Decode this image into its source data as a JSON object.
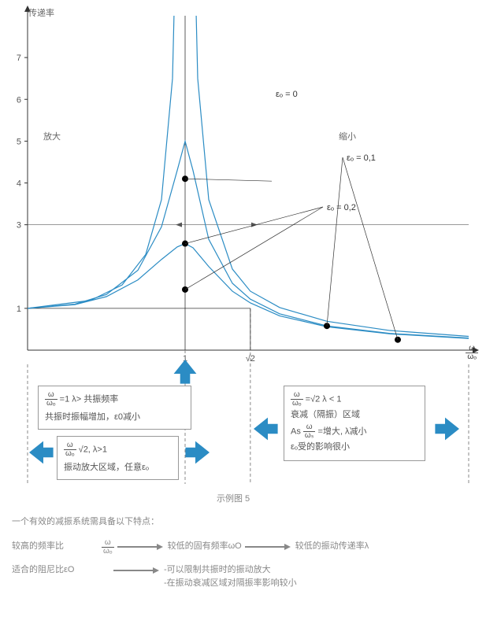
{
  "chart": {
    "type": "line",
    "title_y": "传递率",
    "xlim": [
      0,
      2.8
    ],
    "ylim": [
      0,
      8
    ],
    "yticks": [
      1,
      3,
      4,
      5,
      6,
      7
    ],
    "xticks_special": [
      "1",
      "√2"
    ],
    "background_color": "#ffffff",
    "grid_color": "#333333",
    "axis_color": "#333333",
    "curve_color": "#2b8cc4",
    "curve_width": 1.2,
    "marker_color": "#000000",
    "marker_radius": 4,
    "series": {
      "eps_0": {
        "label": "εₒ = 0",
        "points_x": [
          0,
          0.4,
          0.6,
          0.75,
          0.85,
          0.92,
          0.96,
          0.98,
          0.99
        ],
        "points_y": [
          1,
          1.19,
          1.56,
          2.29,
          3.6,
          6.5,
          12.8,
          25.3,
          50.3
        ],
        "points_x2": [
          1.01,
          1.02,
          1.04,
          1.08,
          1.15,
          1.3,
          1.4142,
          1.6,
          1.9,
          2.3,
          2.8
        ],
        "points_y2": [
          50.3,
          25.3,
          12.8,
          6.5,
          3.6,
          1.94,
          1.41,
          1.02,
          0.69,
          0.47,
          0.33
        ]
      },
      "eps_01": {
        "label": "εₒ = 0,1",
        "points_x": [
          0,
          0.3,
          0.5,
          0.7,
          0.85,
          0.95,
          1.0,
          1.05,
          1.15,
          1.3,
          1.4142,
          1.6,
          1.9,
          2.3,
          2.8
        ],
        "points_y": [
          1,
          1.1,
          1.33,
          1.91,
          2.95,
          4.3,
          5.0,
          4.3,
          2.65,
          1.6,
          1.22,
          0.87,
          0.58,
          0.4,
          0.29
        ]
      },
      "eps_02": {
        "label": "εₒ = 0,2",
        "points_x": [
          0,
          0.3,
          0.5,
          0.7,
          0.85,
          0.95,
          1.0,
          1.05,
          1.15,
          1.3,
          1.4142,
          1.6,
          1.9,
          2.3,
          2.8
        ],
        "points_y": [
          1,
          1.09,
          1.28,
          1.68,
          2.17,
          2.47,
          2.55,
          2.45,
          2.0,
          1.41,
          1.13,
          0.82,
          0.56,
          0.39,
          0.28
        ]
      }
    },
    "markers": [
      {
        "x": 1.0,
        "y": 4.1,
        "leader_to_x": 1.55,
        "label_key": "eps_0"
      },
      {
        "x": 1.0,
        "y": 2.55,
        "leader_to_x": 2.0,
        "leader_to_y": 2.9,
        "label_key": "eps_02"
      },
      {
        "x": 1.0,
        "y": 1.45
      },
      {
        "x": 1.9,
        "y": 0.58,
        "leader_to_x": 2.35,
        "leader_to_y": 2.9,
        "label_key": "eps_01"
      },
      {
        "x": 2.35,
        "y": 0.25
      }
    ],
    "region_labels": {
      "amplify": "放大",
      "reduce": "缩小"
    },
    "arrow_color": "#2b8cc4",
    "x_axis_label_frac": {
      "num": "ω",
      "den": "ωₒ"
    }
  },
  "box_resonance": {
    "line1_frac": {
      "num": "ω",
      "den": "ωₒ"
    },
    "line1_rest": " =1 λ> 共振频率",
    "line2": "共振时振幅增加，ε0减小"
  },
  "box_amplify": {
    "line1_frac": {
      "num": "ω",
      "den": "ωₒ"
    },
    "line1_rest": " √2, λ>1",
    "line2": "振动放大区域，任意εₒ"
  },
  "box_damp": {
    "line1_frac": {
      "num": "ω",
      "den": "ωₒ"
    },
    "line1_rest": " =√2   λ < 1",
    "line2": "衰减（隔振）区域",
    "line3_pre": "As ",
    "line3_frac": {
      "num": "ω",
      "den": "ωₛ"
    },
    "line3_rest": " =增大, λ减小",
    "line4": "εₒ受的影响很小"
  },
  "caption": "示例图 5",
  "explain": {
    "heading": "一个有效的减振系统需具备以下特点：",
    "row1_label": "较高的频率比 ",
    "row1_frac": {
      "num": "ω",
      "den": "ωₒ"
    },
    "row1_mid": "较低的固有频率ωO",
    "row1_end": "较低的振动传递率λ",
    "row2_label": "适合的阻尼比εO",
    "row2_b1": "-可以限制共振时的振动放大",
    "row2_b2": "-在振动衰减区域对隔振率影响较小"
  }
}
